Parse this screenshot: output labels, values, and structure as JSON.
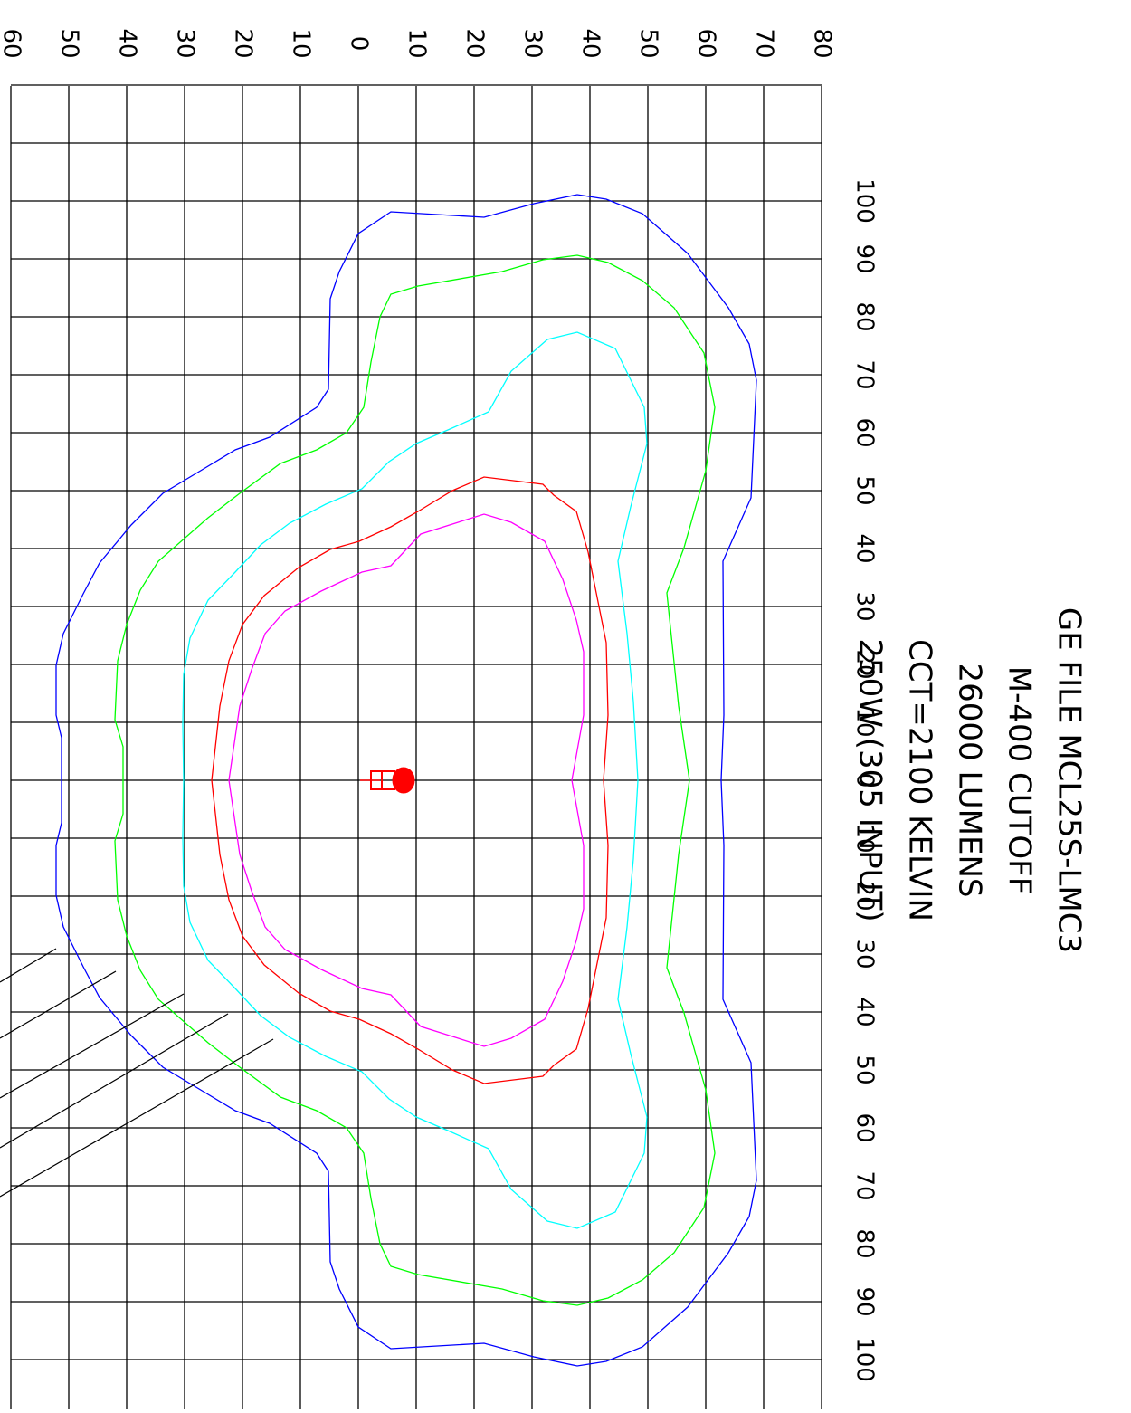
{
  "title_lines": [
    "GE FILE MCL25S-LMC3",
    "M-400 CUTOFF",
    "26000 LUMENS",
    "CCT=2100 KELVIN",
    "250W (305 INPUT)"
  ],
  "transverse_axis_labels": [
    60,
    50,
    40,
    30,
    20,
    10,
    0,
    10,
    20,
    30,
    40,
    50,
    60,
    70,
    80
  ],
  "longitudinal_axis_labels": [
    100,
    90,
    80,
    70,
    60,
    50,
    40,
    30,
    20,
    10,
    0,
    10,
    20,
    30,
    40,
    50,
    60,
    70,
    80,
    90,
    100
  ]
}
